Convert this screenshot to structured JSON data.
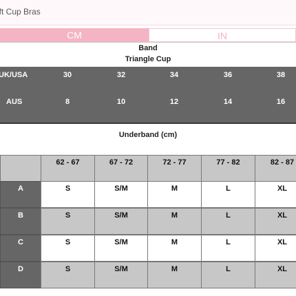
{
  "header": {
    "title": "oft Cup Bras"
  },
  "tabs": [
    {
      "label": "CM",
      "active": true
    },
    {
      "label": "IN",
      "active": false
    }
  ],
  "band_section": {
    "title": "Band",
    "subtitle": "Triangle Cup",
    "rows": [
      {
        "label": "UK/USA",
        "values": [
          "30",
          "32",
          "34",
          "36",
          "38"
        ]
      },
      {
        "label": "AUS",
        "values": [
          "8",
          "10",
          "12",
          "14",
          "16"
        ]
      }
    ]
  },
  "underband_section": {
    "title": "Underband (cm)",
    "columns": [
      "62 - 67",
      "67 - 72",
      "72 - 77",
      "77 - 82",
      "82 - 87"
    ],
    "rows": [
      {
        "label": "A",
        "values": [
          "S",
          "S/M",
          "M",
          "L",
          "XL"
        ]
      },
      {
        "label": "B",
        "values": [
          "S",
          "S/M",
          "M",
          "L",
          "XL"
        ]
      },
      {
        "label": "C",
        "values": [
          "S",
          "S/M",
          "M",
          "L",
          "XL"
        ]
      },
      {
        "label": "D",
        "values": [
          "S",
          "S/M",
          "M",
          "L",
          "XL"
        ]
      }
    ]
  },
  "colors": {
    "pink": "#f4b4c3",
    "dark_grey": "#666666",
    "light_grey": "#c7c7c7"
  }
}
